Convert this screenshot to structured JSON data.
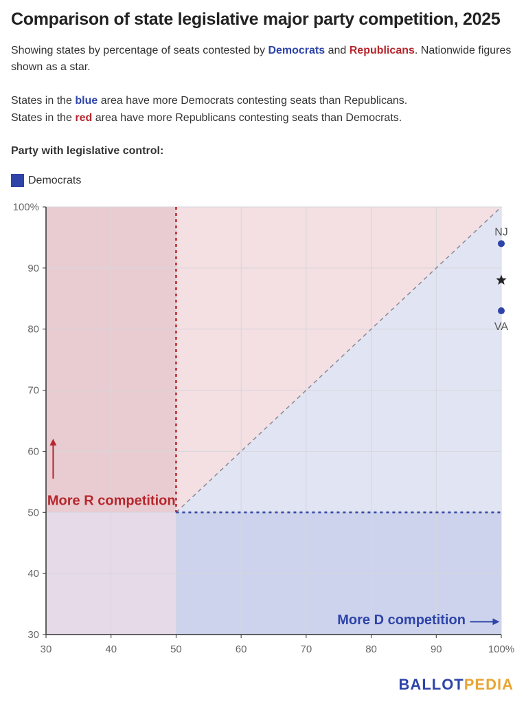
{
  "title": "Comparison of state legislative major party competition, 2025",
  "subtitle": {
    "part1": "Showing states by percentage of seats contested by ",
    "dem": "Democrats",
    "and": " and ",
    "rep": "Republicans",
    "part2": ". Nationwide figures shown as a star."
  },
  "notes": {
    "blue_pre": "States in the ",
    "blue_word": "blue",
    "blue_post": " area have more Democrats contesting seats than Republicans.",
    "red_pre": "States in the ",
    "red_word": "red",
    "red_post": " area have more Republicans contesting seats than Democrats."
  },
  "legend": {
    "title": "Party with legislative control:",
    "items": [
      {
        "label": "Democrats",
        "color": "#2e44a8"
      }
    ]
  },
  "colors": {
    "dem": "#2e44a8",
    "rep": "#b5272d",
    "red_region": "#f4dfe2",
    "blue_region": "#e1e5f3",
    "red_strong": "#e9ccd1",
    "blue_strong": "#cdd3ec",
    "corner": "#e6dae8"
  },
  "brand": {
    "part1": "BALLOT",
    "part2": "PEDIA"
  },
  "chart_data": {
    "type": "scatter",
    "xlim": [
      30,
      100
    ],
    "ylim": [
      30,
      100
    ],
    "x_ticks": [
      "30",
      "40",
      "50",
      "60",
      "70",
      "80",
      "90",
      "100%"
    ],
    "y_ticks": [
      "30",
      "40",
      "50",
      "60",
      "70",
      "80",
      "90",
      "100%"
    ],
    "grid": true,
    "points": [
      {
        "label": "NJ",
        "x": 100,
        "y": 94,
        "label_position": "above"
      },
      {
        "label": "VA",
        "x": 100,
        "y": 83,
        "label_position": "below"
      }
    ],
    "nationwide": {
      "x": 100,
      "y": 88,
      "marker": "star"
    },
    "annotations": {
      "r_competition": "More R competition",
      "d_competition": "More D competition"
    }
  }
}
